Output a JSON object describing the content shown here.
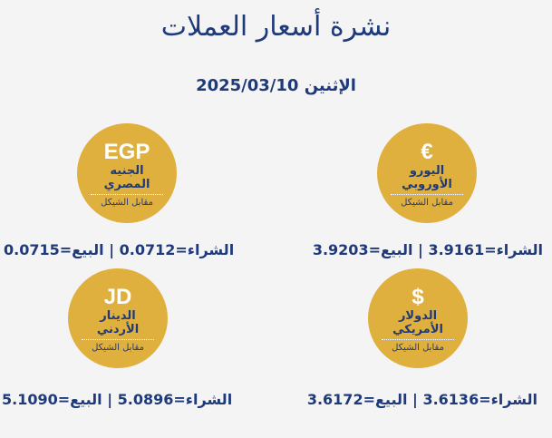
{
  "title": "نشرة أسعار العملات",
  "date": "الإثنين 2025/03/10",
  "colors": {
    "gold": "#e0b03e",
    "navy": "#1f3a7a",
    "background": "#f4f4f4"
  },
  "currencies": [
    {
      "symbol": "€",
      "name_line1": "اليورو",
      "name_line2": "الأوروبي",
      "against": "مقابل الشيكل",
      "rate": "الشراء=3.9161 | البيع=3.9203"
    },
    {
      "symbol": "EGP",
      "name_line1": "الجنيه",
      "name_line2": "المصري",
      "against": "مقابل الشيكل",
      "rate": "الشراء=0.0712 | البيع=0.0715"
    },
    {
      "symbol": "$",
      "name_line1": "الدولار",
      "name_line2": "الأمريكي",
      "against": "مقابل الشيكل",
      "rate": "الشراء=3.6136 | البيع=3.6172"
    },
    {
      "symbol": "JD",
      "name_line1": "الدينار",
      "name_line2": "الأردني",
      "against": "مقابل الشيكل",
      "rate": "الشراء=5.0896 | البيع=5.1090"
    }
  ]
}
